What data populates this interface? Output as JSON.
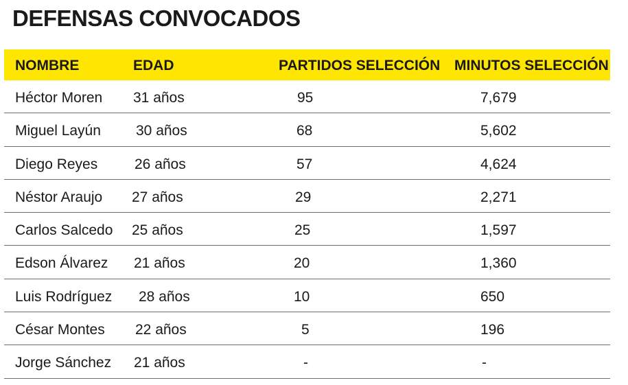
{
  "title": "DEFENSAS CONVOCADOS",
  "table": {
    "headers": {
      "name": "NOMBRE",
      "age": "EDAD",
      "games": "PARTIDOS SELECCIÓN",
      "minutes": "MINUTOS SELECCIÓN"
    },
    "rows": [
      {
        "name": "Héctor Moren",
        "age": "31 años",
        "games": "95",
        "minutes": "7,679"
      },
      {
        "name": "Miguel Layún",
        "age": "30 años",
        "games": "68",
        "minutes": "5,602"
      },
      {
        "name": "Diego Reyes",
        "age": "26 años",
        "games": "57",
        "minutes": "4,624"
      },
      {
        "name": "Néstor Araujo",
        "age": "27 años",
        "games": "29",
        "minutes": "2,271"
      },
      {
        "name": "Carlos Salcedo",
        "age": "25 años",
        "games": "25",
        "minutes": "1,597"
      },
      {
        "name": "Edson Álvarez",
        "age": "21 años",
        "games": "20",
        "minutes": "1,360"
      },
      {
        "name": "Luis Rodríguez",
        "age": "28 años",
        "games": "10",
        "minutes": "650"
      },
      {
        "name": "César Montes",
        "age": "22 años",
        "games": "5",
        "minutes": "196"
      },
      {
        "name": "Jorge Sánchez",
        "age": "21 años",
        "games": "-",
        "minutes": "-"
      }
    ]
  },
  "colors": {
    "header_bg": "#ffe600",
    "text": "#1a1a1a",
    "row_divider": "#6b6b6b"
  }
}
